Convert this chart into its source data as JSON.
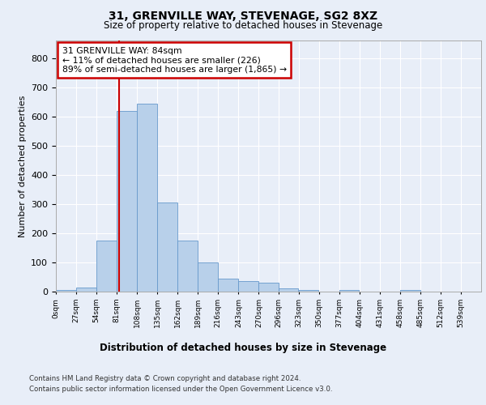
{
  "title1": "31, GRENVILLE WAY, STEVENAGE, SG2 8XZ",
  "title2": "Size of property relative to detached houses in Stevenage",
  "xlabel": "Distribution of detached houses by size in Stevenage",
  "ylabel": "Number of detached properties",
  "bin_labels": [
    "0sqm",
    "27sqm",
    "54sqm",
    "81sqm",
    "108sqm",
    "135sqm",
    "162sqm",
    "189sqm",
    "216sqm",
    "243sqm",
    "270sqm",
    "296sqm",
    "323sqm",
    "350sqm",
    "377sqm",
    "404sqm",
    "431sqm",
    "458sqm",
    "485sqm",
    "512sqm",
    "539sqm"
  ],
  "bin_edges": [
    0,
    27,
    54,
    81,
    108,
    135,
    162,
    189,
    216,
    243,
    270,
    296,
    323,
    350,
    377,
    404,
    431,
    458,
    485,
    512,
    539,
    566
  ],
  "bar_heights": [
    5,
    15,
    175,
    620,
    645,
    305,
    175,
    100,
    45,
    35,
    30,
    10,
    5,
    0,
    5,
    0,
    0,
    5,
    0,
    0,
    0
  ],
  "bar_color": "#b8d0ea",
  "bar_edge_color": "#6699cc",
  "annotation_box_text": "31 GRENVILLE WAY: 84sqm\n← 11% of detached houses are smaller (226)\n89% of semi-detached houses are larger (1,865) →",
  "vline_x": 84,
  "vline_color": "#cc0000",
  "footer_text1": "Contains HM Land Registry data © Crown copyright and database right 2024.",
  "footer_text2": "Contains public sector information licensed under the Open Government Licence v3.0.",
  "ylim": [
    0,
    860
  ],
  "yticks": [
    0,
    100,
    200,
    300,
    400,
    500,
    600,
    700,
    800
  ],
  "background_color": "#e8eef8",
  "grid_color": "#ffffff",
  "fig_bg_color": "#e8eef8"
}
